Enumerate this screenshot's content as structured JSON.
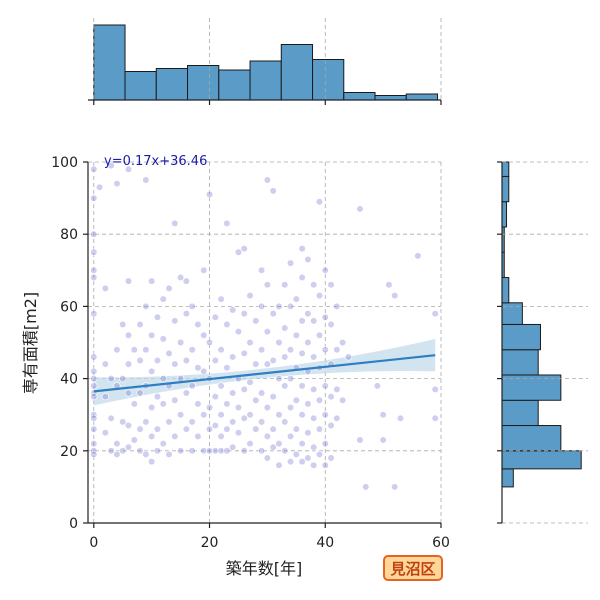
{
  "badge": {
    "label": "見沼区",
    "bg": "#ffd79a",
    "border": "#e8641e",
    "text_color": "#c0410f"
  },
  "chart_data": {
    "type": "scatter",
    "title": "",
    "xlabel": "築年数[年]",
    "ylabel": "専有面積[m2]",
    "xlim": [
      -1,
      60
    ],
    "ylim": [
      0,
      100
    ],
    "xticks": [
      0,
      20,
      40,
      60
    ],
    "yticks": [
      0,
      20,
      40,
      60,
      80,
      100
    ],
    "grid": true,
    "regression": {
      "equation": "y=0.17x+36.46",
      "slope": 0.17,
      "intercept": 36.46,
      "ci_band": true,
      "color": "#2e7ec1"
    },
    "point_color": "#7d7fd4",
    "points": [
      [
        0,
        98
      ],
      [
        0,
        90
      ],
      [
        0,
        80
      ],
      [
        0,
        75
      ],
      [
        0,
        70
      ],
      [
        0,
        68
      ],
      [
        0,
        58
      ],
      [
        0,
        46
      ],
      [
        0,
        42
      ],
      [
        0,
        40
      ],
      [
        0,
        38
      ],
      [
        0,
        36
      ],
      [
        0,
        35
      ],
      [
        0,
        30
      ],
      [
        0,
        29
      ],
      [
        0,
        26
      ],
      [
        0,
        22
      ],
      [
        0,
        20
      ],
      [
        0,
        19
      ],
      [
        1,
        93
      ],
      [
        2,
        65
      ],
      [
        2,
        44
      ],
      [
        2,
        35
      ],
      [
        2,
        25
      ],
      [
        3,
        99
      ],
      [
        3,
        40
      ],
      [
        3,
        29
      ],
      [
        3,
        20
      ],
      [
        4,
        94
      ],
      [
        4,
        48
      ],
      [
        4,
        38
      ],
      [
        4,
        22
      ],
      [
        4,
        19
      ],
      [
        5,
        55
      ],
      [
        5,
        40
      ],
      [
        5,
        28
      ],
      [
        5,
        20
      ],
      [
        6,
        98
      ],
      [
        6,
        67
      ],
      [
        6,
        52
      ],
      [
        6,
        44
      ],
      [
        6,
        36
      ],
      [
        6,
        27
      ],
      [
        6,
        21
      ],
      [
        7,
        48
      ],
      [
        7,
        33
      ],
      [
        7,
        23
      ],
      [
        8,
        55
      ],
      [
        8,
        45
      ],
      [
        8,
        36
      ],
      [
        8,
        26
      ],
      [
        8,
        20
      ],
      [
        9,
        95
      ],
      [
        9,
        60
      ],
      [
        9,
        48
      ],
      [
        9,
        38
      ],
      [
        9,
        28
      ],
      [
        9,
        19
      ],
      [
        10,
        67
      ],
      [
        10,
        52
      ],
      [
        10,
        42
      ],
      [
        10,
        32
      ],
      [
        10,
        24
      ],
      [
        10,
        17
      ],
      [
        11,
        57
      ],
      [
        11,
        45
      ],
      [
        11,
        35
      ],
      [
        11,
        26
      ],
      [
        11,
        20
      ],
      [
        12,
        62
      ],
      [
        12,
        51
      ],
      [
        12,
        40
      ],
      [
        12,
        33
      ],
      [
        12,
        22
      ],
      [
        13,
        65
      ],
      [
        13,
        47
      ],
      [
        13,
        38
      ],
      [
        13,
        28
      ],
      [
        13,
        19
      ],
      [
        14,
        83
      ],
      [
        14,
        56
      ],
      [
        14,
        44
      ],
      [
        14,
        34
      ],
      [
        14,
        24
      ],
      [
        15,
        68
      ],
      [
        15,
        50
      ],
      [
        15,
        40
      ],
      [
        15,
        30
      ],
      [
        15,
        20
      ],
      [
        16,
        67
      ],
      [
        16,
        58
      ],
      [
        16,
        45
      ],
      [
        16,
        36
      ],
      [
        16,
        26
      ],
      [
        17,
        60
      ],
      [
        17,
        48
      ],
      [
        17,
        38
      ],
      [
        17,
        28
      ],
      [
        17,
        20
      ],
      [
        18,
        55
      ],
      [
        18,
        43
      ],
      [
        18,
        33
      ],
      [
        18,
        24
      ],
      [
        19,
        70
      ],
      [
        19,
        52
      ],
      [
        19,
        42
      ],
      [
        19,
        30
      ],
      [
        19,
        20
      ],
      [
        20,
        91
      ],
      [
        20,
        50
      ],
      [
        20,
        40
      ],
      [
        20,
        32
      ],
      [
        20,
        26
      ],
      [
        20,
        20
      ],
      [
        21,
        57
      ],
      [
        21,
        45
      ],
      [
        21,
        35
      ],
      [
        21,
        27
      ],
      [
        21,
        20
      ],
      [
        22,
        62
      ],
      [
        22,
        48
      ],
      [
        22,
        38
      ],
      [
        22,
        30
      ],
      [
        22,
        24
      ],
      [
        22,
        20
      ],
      [
        23,
        83
      ],
      [
        23,
        55
      ],
      [
        23,
        43
      ],
      [
        23,
        33
      ],
      [
        23,
        26
      ],
      [
        23,
        20
      ],
      [
        24,
        59
      ],
      [
        24,
        46
      ],
      [
        24,
        36
      ],
      [
        24,
        28
      ],
      [
        24,
        21
      ],
      [
        25,
        75
      ],
      [
        25,
        53
      ],
      [
        25,
        40
      ],
      [
        25,
        32
      ],
      [
        25,
        25
      ],
      [
        26,
        76
      ],
      [
        26,
        58
      ],
      [
        26,
        47
      ],
      [
        26,
        37
      ],
      [
        26,
        29
      ],
      [
        26,
        20
      ],
      [
        27,
        63
      ],
      [
        27,
        50
      ],
      [
        27,
        39
      ],
      [
        27,
        30
      ],
      [
        27,
        22
      ],
      [
        28,
        56
      ],
      [
        28,
        44
      ],
      [
        28,
        34
      ],
      [
        28,
        26
      ],
      [
        29,
        70
      ],
      [
        29,
        60
      ],
      [
        29,
        48
      ],
      [
        29,
        36
      ],
      [
        29,
        28
      ],
      [
        29,
        20
      ],
      [
        30,
        95
      ],
      [
        30,
        66
      ],
      [
        30,
        53
      ],
      [
        30,
        44
      ],
      [
        30,
        32
      ],
      [
        30,
        24
      ],
      [
        30,
        18
      ],
      [
        31,
        92
      ],
      [
        31,
        58
      ],
      [
        31,
        45
      ],
      [
        31,
        35
      ],
      [
        31,
        26
      ],
      [
        31,
        21
      ],
      [
        32,
        60
      ],
      [
        32,
        50
      ],
      [
        32,
        40
      ],
      [
        32,
        30
      ],
      [
        32,
        22
      ],
      [
        32,
        16
      ],
      [
        33,
        66
      ],
      [
        33,
        54
      ],
      [
        33,
        46
      ],
      [
        33,
        38
      ],
      [
        33,
        28
      ],
      [
        33,
        20
      ],
      [
        34,
        72
      ],
      [
        34,
        60
      ],
      [
        34,
        48
      ],
      [
        34,
        40
      ],
      [
        34,
        32
      ],
      [
        34,
        24
      ],
      [
        34,
        17
      ],
      [
        35,
        62
      ],
      [
        35,
        52
      ],
      [
        35,
        43
      ],
      [
        35,
        34
      ],
      [
        35,
        26
      ],
      [
        35,
        19
      ],
      [
        36,
        76
      ],
      [
        36,
        68
      ],
      [
        36,
        56
      ],
      [
        36,
        47
      ],
      [
        36,
        38
      ],
      [
        36,
        30
      ],
      [
        36,
        22
      ],
      [
        36,
        17
      ],
      [
        37,
        73
      ],
      [
        37,
        58
      ],
      [
        37,
        50
      ],
      [
        37,
        42
      ],
      [
        37,
        33
      ],
      [
        37,
        25
      ],
      [
        37,
        18
      ],
      [
        38,
        66
      ],
      [
        38,
        56
      ],
      [
        38,
        46
      ],
      [
        38,
        37
      ],
      [
        38,
        29
      ],
      [
        38,
        21
      ],
      [
        38,
        16
      ],
      [
        39,
        89
      ],
      [
        39,
        63
      ],
      [
        39,
        52
      ],
      [
        39,
        43
      ],
      [
        39,
        34
      ],
      [
        39,
        26
      ],
      [
        39,
        19
      ],
      [
        40,
        70
      ],
      [
        40,
        57
      ],
      [
        40,
        48
      ],
      [
        40,
        38
      ],
      [
        40,
        30
      ],
      [
        40,
        22
      ],
      [
        40,
        16
      ],
      [
        41,
        66
      ],
      [
        41,
        55
      ],
      [
        41,
        44
      ],
      [
        41,
        35
      ],
      [
        41,
        27
      ],
      [
        41,
        18
      ],
      [
        42,
        60
      ],
      [
        42,
        48
      ],
      [
        42,
        37
      ],
      [
        42,
        29
      ],
      [
        43,
        50
      ],
      [
        43,
        34
      ],
      [
        44,
        46
      ],
      [
        46,
        87
      ],
      [
        46,
        23
      ],
      [
        47,
        10
      ],
      [
        49,
        38
      ],
      [
        50,
        30
      ],
      [
        50,
        23
      ],
      [
        51,
        66
      ],
      [
        52,
        63
      ],
      [
        52,
        10
      ],
      [
        53,
        29
      ],
      [
        56,
        74
      ],
      [
        59,
        58
      ],
      [
        59,
        37
      ],
      [
        59,
        29
      ]
    ],
    "top_histogram": {
      "bin_edges": [
        0,
        5.4,
        10.8,
        16.2,
        21.6,
        27,
        32.4,
        37.8,
        43.2,
        48.6,
        54,
        59.4
      ],
      "counts": [
        50,
        19,
        21,
        23,
        20,
        26,
        37,
        27,
        5,
        3,
        4
      ],
      "ymax": 52
    },
    "right_histogram": {
      "bin_edges": [
        10,
        15,
        20,
        27,
        34,
        41,
        48,
        55,
        61,
        68,
        75,
        82,
        89,
        96,
        100
      ],
      "counts": [
        5,
        35,
        26,
        16,
        26,
        16,
        17,
        9,
        3,
        1,
        1,
        2,
        3,
        3
      ],
      "xmax": 38
    },
    "hist_color": "#5a9bc7"
  }
}
